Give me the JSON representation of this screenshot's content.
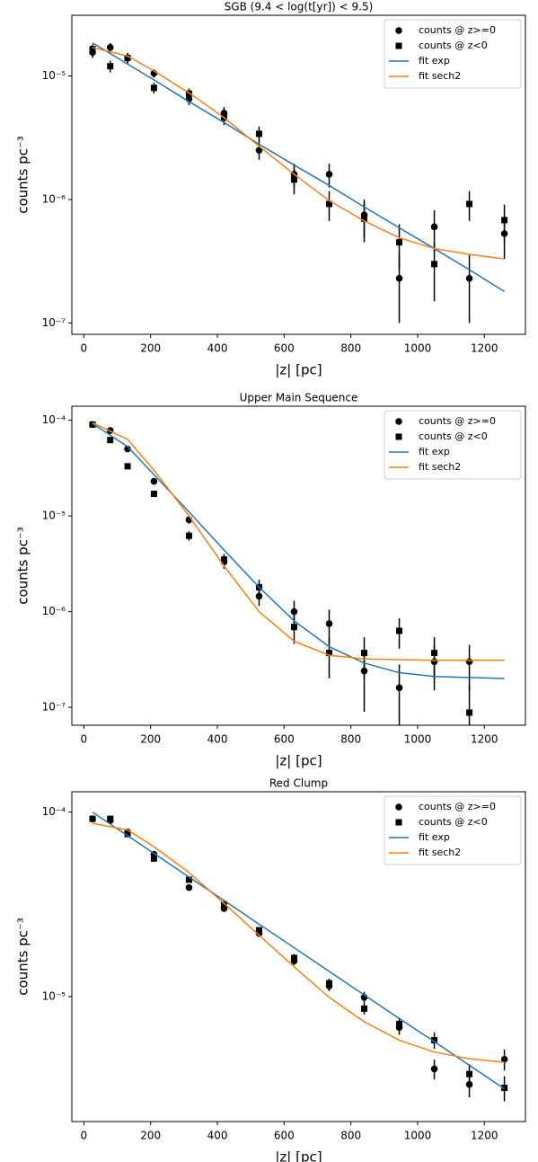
{
  "chart_data": [
    {
      "type": "scatter",
      "title": "SGB (9.4 < log(t[yr]) < 9.5)",
      "x_label": "|z| [pc]",
      "y_label": "counts pc⁻³",
      "yscale": "log",
      "xlim": [
        -36,
        1323
      ],
      "ylim": [
        8.1e-08,
        3.1e-05
      ],
      "xticks": [
        0,
        200,
        400,
        600,
        800,
        1000,
        1200
      ],
      "yticks": [
        {
          "value": 1e-07,
          "label": "10⁻⁷"
        },
        {
          "value": 1e-06,
          "label": "10⁻⁶"
        },
        {
          "value": 1e-05,
          "label": "10⁻⁵"
        }
      ],
      "legend": "upper right",
      "series": [
        {
          "name": "counts @ z>=0",
          "color": "#000000",
          "marker": "circle",
          "x": [
            26,
            79,
            131,
            210,
            315,
            420,
            525,
            630,
            735,
            840,
            945,
            1050,
            1155,
            1260
          ],
          "values": [
            1.55e-05,
            1.7e-05,
            1.4e-05,
            1.05e-05,
            6.5e-06,
            5e-06,
            2.5e-06,
            1.6e-06,
            1.6e-06,
            7.5e-07,
            2.3e-07,
            6e-07,
            2.3e-07,
            5.3e-07
          ],
          "errors": [
            1.5e-06,
            1.5e-06,
            1.3e-06,
            8e-07,
            7e-07,
            6e-07,
            4e-07,
            3.5e-07,
            3.5e-07,
            2.5e-07,
            1.3e-07,
            2.2e-07,
            1.3e-07,
            2e-07
          ]
        },
        {
          "name": "counts @ z<0",
          "color": "#000000",
          "marker": "square",
          "x": [
            26,
            79,
            131,
            210,
            315,
            420,
            525,
            630,
            735,
            840,
            945,
            1050,
            1155,
            1260
          ],
          "values": [
            1.65e-05,
            1.2e-05,
            1.4e-05,
            8e-06,
            7.2e-06,
            4.6e-06,
            3.4e-06,
            1.45e-06,
            9.2e-07,
            7e-07,
            4.5e-07,
            3e-07,
            9.2e-07,
            6.8e-07
          ],
          "errors": [
            1.5e-06,
            1.3e-06,
            1.3e-06,
            8e-07,
            7e-07,
            6e-07,
            5e-07,
            3.5e-07,
            2.5e-07,
            2.5e-07,
            1.8e-07,
            1.5e-07,
            2.5e-07,
            2.3e-07
          ]
        },
        {
          "name": "fit exp",
          "color": "#1f77b4",
          "marker": "line",
          "x": [
            26,
            131,
            210,
            315,
            420,
            525,
            630,
            735,
            840,
            945,
            1050,
            1155,
            1260
          ],
          "values": [
            1.85e-05,
            1.25e-05,
            9.3e-06,
            6.2e-06,
            4.2e-06,
            2.8e-06,
            1.9e-06,
            1.3e-06,
            8.7e-07,
            5.9e-07,
            4e-07,
            2.7e-07,
            1.8e-07
          ]
        },
        {
          "name": "fit sech2",
          "color": "#ff7f0e",
          "marker": "line",
          "x": [
            26,
            131,
            210,
            315,
            420,
            525,
            630,
            735,
            840,
            945,
            1050,
            1155,
            1260
          ],
          "values": [
            1.7e-05,
            1.45e-05,
            1.1e-05,
            7.3e-06,
            4.6e-06,
            2.7e-06,
            1.6e-06,
            9.8e-07,
            6.7e-07,
            4.9e-07,
            4e-07,
            3.6e-07,
            3.3e-07
          ]
        }
      ]
    },
    {
      "type": "scatter",
      "title": "Upper Main Sequence",
      "x_label": "|z| [pc]",
      "y_label": "counts pc⁻³",
      "yscale": "log",
      "xlim": [
        -36,
        1323
      ],
      "ylim": [
        6.5e-08,
        0.00014
      ],
      "xticks": [
        0,
        200,
        400,
        600,
        800,
        1000,
        1200
      ],
      "yticks": [
        {
          "value": 1e-07,
          "label": "10⁻⁷"
        },
        {
          "value": 1e-06,
          "label": "10⁻⁶"
        },
        {
          "value": 1e-05,
          "label": "10⁻⁵"
        },
        {
          "value": 0.0001,
          "label": "10⁻⁴"
        }
      ],
      "legend": "upper right",
      "series": [
        {
          "name": "counts @ z>=0",
          "color": "#000000",
          "marker": "circle",
          "x": [
            26,
            79,
            131,
            210,
            315,
            420,
            525,
            630,
            735,
            840,
            945,
            1050,
            1155
          ],
          "values": [
            9e-05,
            7.8e-05,
            5e-05,
            2.3e-05,
            9.1e-06,
            3.3e-06,
            1.45e-06,
            1e-06,
            7.5e-07,
            2.4e-07,
            1.6e-07,
            3e-07,
            3e-07
          ],
          "errors": [
            3e-06,
            3e-06,
            2.5e-06,
            1.5e-06,
            8e-07,
            5e-07,
            3e-07,
            3e-07,
            3e-07,
            1.5e-07,
            1.2e-07,
            1.5e-07,
            1.5e-07
          ]
        },
        {
          "name": "counts @ z<0",
          "color": "#000000",
          "marker": "square",
          "x": [
            26,
            79,
            131,
            210,
            315,
            420,
            525,
            630,
            735,
            840,
            945,
            1050,
            1155
          ],
          "values": [
            9e-05,
            6.2e-05,
            3.3e-05,
            1.7e-05,
            6.2e-06,
            3.5e-06,
            1.8e-06,
            6.9e-07,
            3.7e-07,
            3.7e-07,
            6.3e-07,
            3.7e-07,
            8.8e-08
          ],
          "errors": [
            3e-06,
            2.5e-06,
            2e-06,
            1.3e-06,
            7e-07,
            5e-07,
            3.5e-07,
            2.3e-07,
            1.7e-07,
            1.7e-07,
            2.2e-07,
            1.7e-07,
            8e-08
          ]
        },
        {
          "name": "fit exp",
          "color": "#1f77b4",
          "marker": "line",
          "x": [
            26,
            131,
            210,
            315,
            420,
            525,
            630,
            735,
            840,
            945,
            1050,
            1155,
            1260
          ],
          "values": [
            9.2e-05,
            5.3e-05,
            2.7e-05,
            1.1e-05,
            4.4e-06,
            1.8e-06,
            8e-07,
            4.3e-07,
            2.9e-07,
            2.3e-07,
            2.1e-07,
            2.05e-07,
            2e-07
          ]
        },
        {
          "name": "fit sech2",
          "color": "#ff7f0e",
          "marker": "line",
          "x": [
            26,
            131,
            210,
            315,
            420,
            525,
            630,
            735,
            840,
            945,
            1050,
            1155,
            1260
          ],
          "values": [
            9.4e-05,
            6.3e-05,
            3e-05,
            1e-05,
            3e-06,
            1e-06,
            4.9e-07,
            3.5e-07,
            3.2e-07,
            3.15e-07,
            3.1e-07,
            3.1e-07,
            3.1e-07
          ]
        }
      ]
    },
    {
      "type": "scatter",
      "title": "Red Clump",
      "x_label": "|z| [pc]",
      "y_label": "counts pc⁻³",
      "yscale": "log",
      "xlim": [
        -36,
        1323
      ],
      "ylim": [
        2.1e-06,
        0.000129
      ],
      "xticks": [
        0,
        200,
        400,
        600,
        800,
        1000,
        1200
      ],
      "yticks": [
        {
          "value": 1e-05,
          "label": "10⁻⁵"
        },
        {
          "value": 0.0001,
          "label": "10⁻⁴"
        }
      ],
      "legend": "upper right",
      "series": [
        {
          "name": "counts @ z>=0",
          "color": "#000000",
          "marker": "circle",
          "x": [
            26,
            79,
            131,
            210,
            315,
            420,
            525,
            630,
            735,
            840,
            945,
            1050,
            1155,
            1260
          ],
          "values": [
            9.2e-05,
            9e-05,
            7.8e-05,
            5.9e-05,
            3.9e-05,
            3e-05,
            2.2e-05,
            1.56e-05,
            1.14e-05,
            9.9e-06,
            6.8e-06,
            4.05e-06,
            3.34e-06,
            4.57e-06
          ],
          "errors": [
            2e-06,
            2e-06,
            1.8e-06,
            1.5e-06,
            1.2e-06,
            1e-06,
            9e-07,
            8e-07,
            7e-07,
            7e-07,
            6e-07,
            5e-07,
            5e-07,
            6e-07
          ]
        },
        {
          "name": "counts @ z<0",
          "color": "#000000",
          "marker": "square",
          "x": [
            26,
            79,
            131,
            210,
            315,
            420,
            525,
            630,
            735,
            840,
            945,
            1050,
            1155,
            1260
          ],
          "values": [
            9.2e-05,
            9.2e-05,
            7.6e-05,
            5.6e-05,
            4.3e-05,
            3.16e-05,
            2.29e-05,
            1.62e-05,
            1.18e-05,
            8.6e-06,
            7.1e-06,
            5.8e-06,
            3.8e-06,
            3.2e-06
          ],
          "errors": [
            2e-06,
            2e-06,
            1.8e-06,
            1.5e-06,
            1.2e-06,
            1e-06,
            9e-07,
            8e-07,
            7e-07,
            6e-07,
            6e-07,
            6e-07,
            5e-07,
            5e-07
          ]
        },
        {
          "name": "fit exp",
          "color": "#1f77b4",
          "marker": "line",
          "x": [
            26,
            131,
            210,
            315,
            420,
            525,
            630,
            735,
            840,
            945,
            1050,
            1155,
            1260
          ],
          "values": [
            0.0001,
            7.45e-05,
            5.97e-05,
            4.45e-05,
            3.32e-05,
            2.47e-05,
            1.84e-05,
            1.37e-05,
            1.02e-05,
            7.6e-06,
            5.7e-06,
            4.24e-06,
            3.16e-06
          ]
        },
        {
          "name": "fit sech2",
          "color": "#ff7f0e",
          "marker": "line",
          "x": [
            26,
            131,
            210,
            315,
            420,
            525,
            630,
            735,
            840,
            945,
            1050,
            1155,
            1260
          ],
          "values": [
            8.7e-05,
            8e-05,
            6.5e-05,
            4.7e-05,
            3.2e-05,
            2.15e-05,
            1.45e-05,
            9.9e-06,
            7.3e-06,
            5.8e-06,
            5e-06,
            4.6e-06,
            4.4e-06
          ]
        }
      ]
    }
  ]
}
